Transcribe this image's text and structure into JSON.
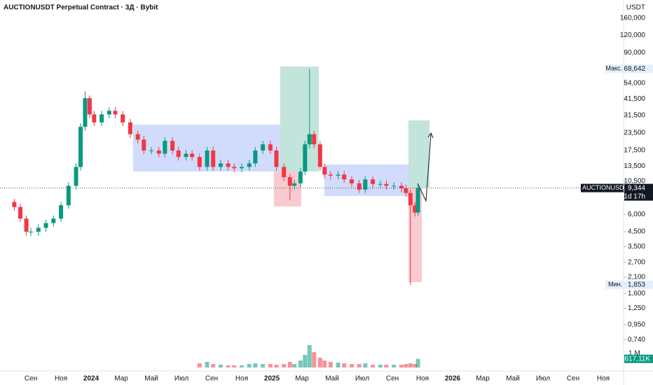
{
  "chart_data": {
    "type": "candlestick",
    "title": "AUCTIONUSDT Perpetual Contract · 3Д · Bybit",
    "currency": "USDT",
    "log_scale": true,
    "up_color": "#089981",
    "down_color": "#f23645",
    "x": [
      -1.1,
      -0.7,
      -0.3,
      0,
      0.5,
      1,
      1.5,
      2,
      2.5,
      3,
      3.3,
      3.6,
      3.9,
      4.2,
      4.7,
      5.2,
      5.6,
      6.1,
      6.6,
      7.1,
      7.5,
      8,
      8.5,
      8.9,
      9.4,
      9.8,
      10.3,
      10.7,
      11.2,
      11.7,
      12.1,
      12.6,
      13.1,
      13.5,
      14,
      14.5,
      14.9,
      15.4,
      15.9,
      16.3,
      16.8,
      17.2,
      17.5,
      17.9,
      18.2,
      18.5,
      18.8,
      19.2,
      19.5,
      19.9,
      20.4,
      20.8,
      21.3,
      21.8,
      22.2,
      22.7,
      23.2,
      23.6,
      24.1,
      24.6,
      24.9,
      25.2,
      25.5,
      25.7
    ],
    "open": [
      7.4,
      6.8,
      5.6,
      4.5,
      4.5,
      4.8,
      5.2,
      5.6,
      7.0,
      9.7,
      13.3,
      26,
      42,
      32,
      28,
      32,
      34,
      32,
      28,
      23,
      21,
      17.5,
      17.5,
      16.6,
      20.6,
      17.5,
      15.7,
      16.6,
      15.7,
      13.3,
      17.5,
      13.3,
      14.1,
      13.3,
      13.0,
      13.3,
      14.1,
      17.5,
      19.4,
      17.5,
      13.3,
      11.2,
      9.7,
      10.1,
      12.3,
      19.4,
      23,
      19.4,
      13.3,
      11.7,
      11.5,
      11.7,
      10.8,
      10.1,
      9.1,
      10.8,
      10,
      10,
      9.7,
      9.7,
      9.3,
      8.6,
      7.0,
      6.2
    ],
    "high": [
      7.8,
      7.2,
      5.9,
      4.8,
      5.1,
      5.5,
      5.9,
      7.4,
      10.3,
      14.1,
      27.6,
      47,
      44,
      34,
      34,
      36,
      36,
      34,
      29.7,
      24.4,
      22.3,
      18.6,
      18.6,
      21.8,
      21.8,
      18.6,
      17.6,
      17.6,
      16.6,
      18.6,
      18.6,
      15,
      15,
      14.1,
      14.1,
      15,
      18.6,
      20.6,
      20.6,
      18.6,
      14.1,
      11.9,
      10.7,
      13,
      20.6,
      68.642,
      24.4,
      20.6,
      14.1,
      12.4,
      12.4,
      12.4,
      11.4,
      10.7,
      11.4,
      11.4,
      10.6,
      10.6,
      10.3,
      10.3,
      9.9,
      9.1,
      7.4,
      9.9
    ],
    "low": [
      6.4,
      5.3,
      4.2,
      4.2,
      4.2,
      4.5,
      4.9,
      5.3,
      6.6,
      9.1,
      12.5,
      24.4,
      30,
      26.3,
      26.3,
      30,
      30,
      26.3,
      21.6,
      19.7,
      16.5,
      16.5,
      15.6,
      15.6,
      16.5,
      14.8,
      14.8,
      14.8,
      12.5,
      12.5,
      12.5,
      12.5,
      12.5,
      12.2,
      12.2,
      12.5,
      13.3,
      16.5,
      16.5,
      12.5,
      10.5,
      7.6,
      9.1,
      9.5,
      11.6,
      18.2,
      18.2,
      12.5,
      11,
      10.8,
      10.8,
      10.2,
      9.5,
      8.6,
      8.6,
      9.4,
      9.4,
      9.1,
      9.1,
      8.7,
      8.1,
      1.853,
      5.8,
      5.9
    ],
    "close": [
      6.8,
      5.6,
      4.5,
      4.5,
      4.8,
      5.2,
      5.6,
      7.0,
      9.7,
      13.3,
      26,
      42,
      32,
      28,
      32,
      34,
      32,
      28,
      23,
      21,
      17.5,
      17.5,
      16.6,
      20.6,
      17.5,
      15.7,
      16.6,
      15.7,
      13.3,
      17.5,
      13.3,
      14.1,
      13.3,
      13.0,
      13.3,
      14.1,
      17.5,
      19.4,
      17.5,
      13.3,
      11.2,
      9.7,
      10.1,
      12.3,
      19.4,
      23,
      19.4,
      13.3,
      11.7,
      11.5,
      11.7,
      10.8,
      10.1,
      9.1,
      10.8,
      10,
      10,
      9.7,
      9.7,
      9.3,
      8.6,
      7.0,
      6.2,
      9.344
    ],
    "volume": [
      null,
      null,
      null,
      null,
      null,
      null,
      null,
      null,
      null,
      null,
      null,
      null,
      null,
      null,
      null,
      null,
      null,
      null,
      null,
      null,
      null,
      null,
      null,
      null,
      null,
      null,
      null,
      null,
      300000,
      400000,
      250000,
      200000,
      150000,
      150000,
      150000,
      250000,
      300000,
      250000,
      250000,
      200000,
      250000,
      400000,
      250000,
      500000,
      900000,
      1600000,
      1100000,
      700000,
      500000,
      400000,
      350000,
      300000,
      250000,
      250000,
      300000,
      200000,
      200000,
      200000,
      200000,
      200000,
      250000,
      300000,
      250000,
      617110
    ],
    "volume_label": "617,11K",
    "volume_lim": [
      0,
      1750000
    ],
    "volume_ticks": [
      {
        "value": 1000000,
        "label": "1 М"
      }
    ],
    "xlim": [
      -2.05,
      39.35
    ],
    "ylim": [
      0.413,
      217
    ],
    "xticks": [
      {
        "value": 0,
        "label": "Сен"
      },
      {
        "value": 2,
        "label": "Ноя"
      },
      {
        "value": 4,
        "label": "2024"
      },
      {
        "value": 6,
        "label": "Мар"
      },
      {
        "value": 8,
        "label": "Май"
      },
      {
        "value": 10,
        "label": "Июл"
      },
      {
        "value": 12,
        "label": "Сен"
      },
      {
        "value": 14,
        "label": "Ноя"
      },
      {
        "value": 16,
        "label": "2025"
      },
      {
        "value": 18,
        "label": "Мар"
      },
      {
        "value": 20,
        "label": "Май"
      },
      {
        "value": 22,
        "label": "Июл"
      },
      {
        "value": 24,
        "label": "Сен"
      },
      {
        "value": 26,
        "label": "Ноя"
      },
      {
        "value": 28,
        "label": "2026"
      },
      {
        "value": 30,
        "label": "Мар"
      },
      {
        "value": 32,
        "label": "Май"
      },
      {
        "value": 34,
        "label": "Июл"
      },
      {
        "value": 36,
        "label": "Сен"
      },
      {
        "value": 38,
        "label": "Ноя"
      }
    ],
    "yticks": [
      {
        "value": 160,
        "label": "160,000"
      },
      {
        "value": 120,
        "label": "120,000"
      },
      {
        "value": 90,
        "label": "90,000"
      },
      {
        "value": 54,
        "label": "54,000"
      },
      {
        "value": 41.5,
        "label": "41,500"
      },
      {
        "value": 31.5,
        "label": "31,500"
      },
      {
        "value": 23.5,
        "label": "23,500"
      },
      {
        "value": 17.5,
        "label": "17,500"
      },
      {
        "value": 13.5,
        "label": "13,500"
      },
      {
        "value": 10.5,
        "label": "10,500"
      },
      {
        "value": 6,
        "label": "6,000"
      },
      {
        "value": 4.5,
        "label": "4,500"
      },
      {
        "value": 3.5,
        "label": "3,500"
      },
      {
        "value": 2.7,
        "label": "2,700"
      },
      {
        "value": 2.1,
        "label": "2,100"
      },
      {
        "value": 1.6,
        "label": "1,600"
      },
      {
        "value": 1.25,
        "label": "1,250"
      },
      {
        "value": 0.95,
        "label": "0,950"
      },
      {
        "value": 0.74,
        "label": "0,740"
      }
    ],
    "max_label": "Макс.",
    "max": {
      "value": 68.642,
      "label": "68,642"
    },
    "min_label": "Мин.",
    "min": {
      "value": 1.853,
      "label": "1,853"
    },
    "symbol": "AUCTIONUSDT.P",
    "last_price": {
      "value": 9.344,
      "label": "9,344"
    },
    "countdown": "1d 17h"
  }
}
